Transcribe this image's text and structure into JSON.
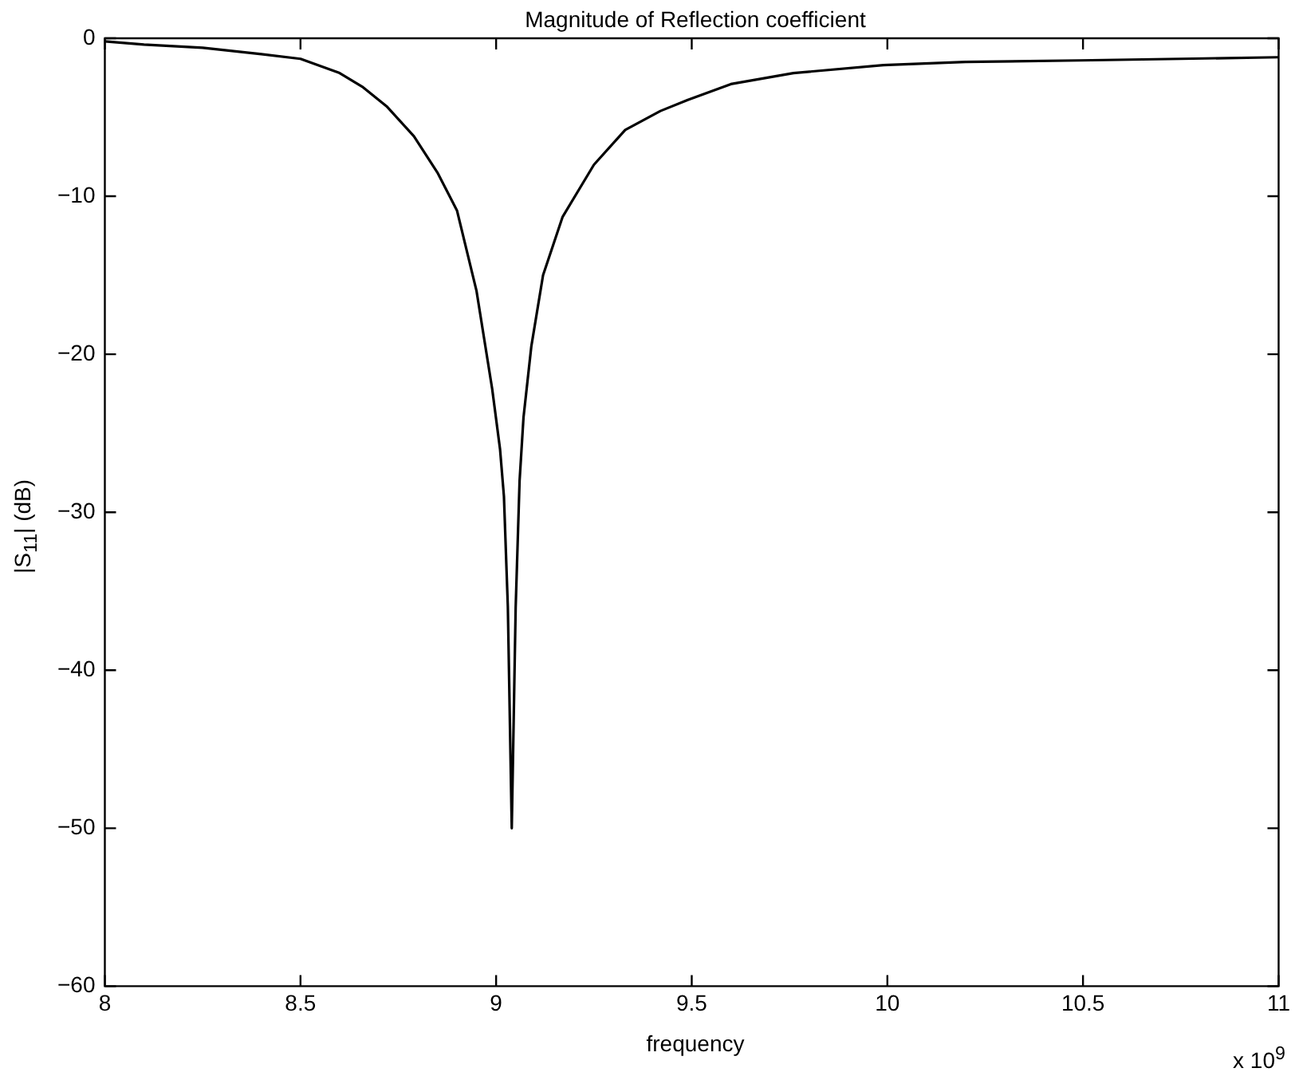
{
  "chart_data": {
    "type": "line",
    "title": "Magnitude of Reflection coefficient",
    "xlabel": "frequency",
    "ylabel": "|S$_{11}$| (dB)",
    "series": [
      {
        "color": "#000000",
        "x": [
          8,
          8.1,
          8.25,
          8.4,
          8.5,
          8.6,
          8.66,
          8.72,
          8.79,
          8.85,
          8.9,
          8.95,
          8.99,
          9.01,
          9.02,
          9.03,
          9.04,
          9.05,
          9.06,
          9.07,
          9.09,
          9.12,
          9.17,
          9.25,
          9.33,
          9.42,
          9.49,
          9.6,
          9.76,
          9.99,
          10.2,
          10.49,
          10.75,
          11
        ],
        "values": [
          -0.2,
          -0.4,
          -0.6,
          -1,
          -1.3,
          -2.2,
          -3.1,
          -4.3,
          -6.2,
          -8.5,
          -10.9,
          -16,
          -22.2,
          -26,
          -29,
          -36,
          -50,
          -36,
          -28,
          -24,
          -19.5,
          -15,
          -11.3,
          -8,
          -5.8,
          -4.6,
          -3.9,
          -2.9,
          -2.2,
          -1.7,
          -1.5,
          -1.4,
          -1.3,
          -1.2
        ]
      }
    ],
    "xlim": [
      8,
      11
    ],
    "xticks": [
      8,
      8.5,
      9,
      9.5,
      10,
      10.5,
      11
    ],
    "ylim": [
      -60,
      0
    ],
    "yticks": [
      -60,
      -50,
      -40,
      -30,
      -20,
      -10,
      0
    ],
    "annotations": [
      "x 10$^{9}$"
    ]
  }
}
